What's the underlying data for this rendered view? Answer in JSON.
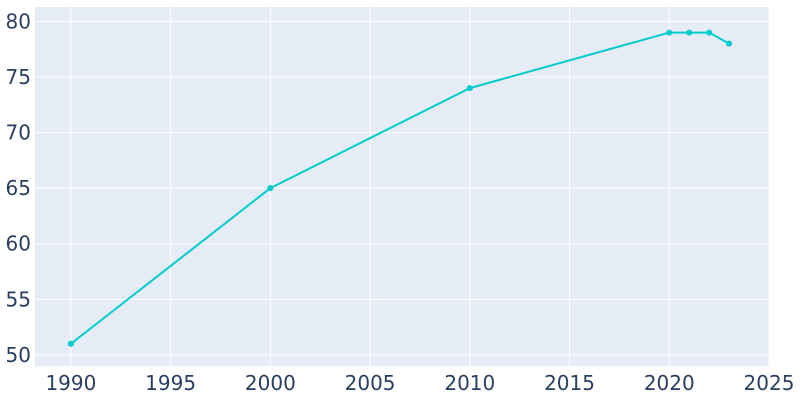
{
  "chart_data": {
    "type": "line",
    "title": "",
    "xlabel": "",
    "ylabel": "",
    "x": [
      1990,
      2000,
      2010,
      2020,
      2021,
      2022,
      2023
    ],
    "series": [
      {
        "values": [
          51,
          65,
          74,
          79,
          79,
          79,
          78
        ]
      }
    ],
    "xlim": [
      1988.2,
      2025
    ],
    "ylim": [
      49,
      81.3
    ],
    "xticks": [
      1990,
      1995,
      2000,
      2005,
      2010,
      2015,
      2020,
      2025
    ],
    "yticks": [
      50,
      55,
      60,
      65,
      70,
      75,
      80
    ],
    "grid": true,
    "legend": "none",
    "colors": {
      "line": "#00cccc",
      "plot_background": "#e5ecf6",
      "grid": "#ffffff",
      "tick_text": "#2a3f5f"
    }
  }
}
